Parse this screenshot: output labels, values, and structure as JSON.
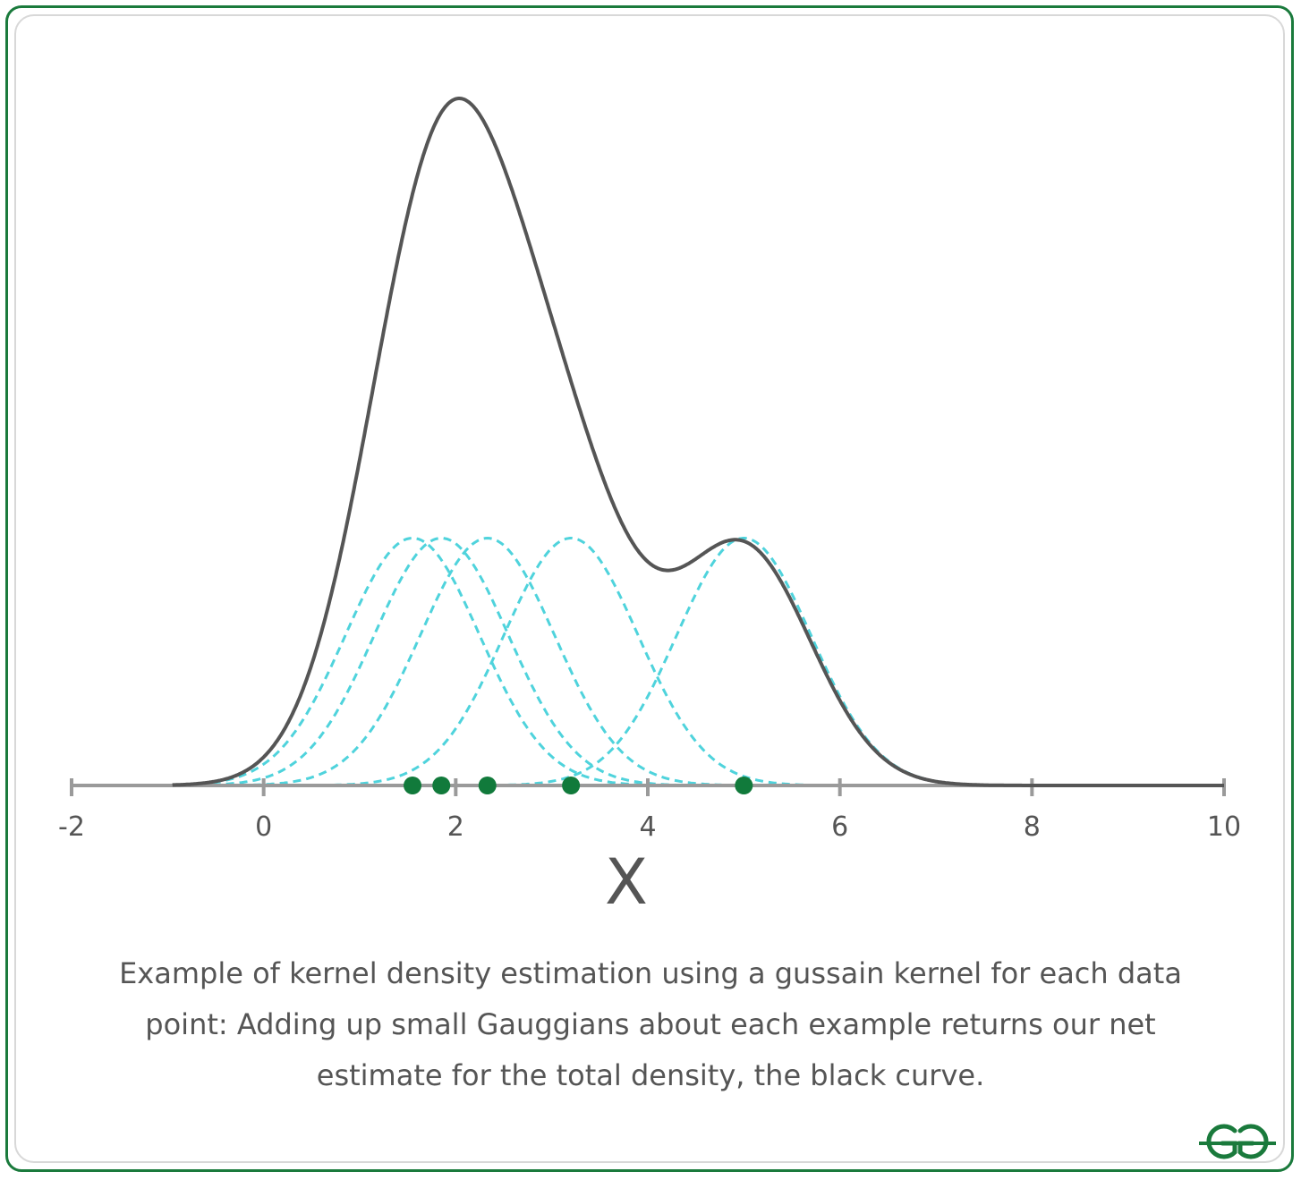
{
  "chart_data": {
    "type": "line",
    "xlabel": "X",
    "xlim": [
      -2,
      10
    ],
    "x_ticks": [
      -2,
      0,
      2,
      4,
      6,
      8,
      10
    ],
    "tick_labels": [
      "-2",
      "0",
      "2",
      "4",
      "6",
      "8",
      "10"
    ],
    "ylim": [
      0,
      1
    ],
    "grid": false,
    "legend": "none",
    "data_points": [
      1.55,
      1.85,
      2.33,
      3.2,
      5.0
    ],
    "kernel_bandwidth": 0.7,
    "kernel_peak": 0.36,
    "kde_peak": 1.0,
    "x_range_plotted": [
      -0.95,
      10
    ],
    "series": [
      {
        "kind": "kde-total",
        "color": "#555555",
        "style": "solid"
      },
      {
        "kind": "kernels",
        "color": "#4fd3dc",
        "style": "dashed"
      }
    ],
    "point_color": "#117a3b"
  },
  "caption": {
    "lines": [
      "Example of kernel density estimation using a gussain kernel for each data",
      "point: Adding up small Gauggians about each example returns our net",
      "estimate for the total density, the black curve."
    ]
  },
  "colors": {
    "frame": "#1a7a3c",
    "axis": "#9a9a9a",
    "label": "#555555"
  },
  "logo": {
    "icon": "gfg-logo-icon"
  }
}
